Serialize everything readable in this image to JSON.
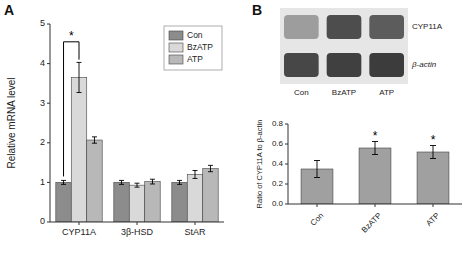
{
  "chart_data": [
    {
      "type": "bar",
      "title": "A",
      "categories": [
        "CYP11A",
        "3β-HSD",
        "StAR"
      ],
      "series": [
        {
          "name": "Con",
          "color": "#8c8c8c",
          "values": [
            1.0,
            1.0,
            1.0
          ],
          "errors": [
            0.05,
            0.05,
            0.05
          ]
        },
        {
          "name": "BzATP",
          "color": "#d9d9d9",
          "values": [
            3.65,
            0.93,
            1.2
          ],
          "errors": [
            0.38,
            0.05,
            0.1
          ]
        },
        {
          "name": "ATP",
          "color": "#b8b8b8",
          "values": [
            2.07,
            1.02,
            1.35
          ],
          "errors": [
            0.08,
            0.06,
            0.08
          ]
        }
      ],
      "ylabel": "Relative mRNA level",
      "ylim": [
        0,
        5
      ],
      "yticks": [
        0,
        1,
        2,
        3,
        4,
        5
      ],
      "grid": false,
      "legend": "upper right",
      "annotations": [
        {
          "text": "*",
          "category": "CYP11A",
          "series": [
            "Con",
            "BzATP"
          ],
          "y": 4.55,
          "y_start": 1.15,
          "y_end": 4.1
        }
      ]
    },
    {
      "type": "heatmap",
      "title": "B",
      "categories": [
        "Con",
        "BzATP",
        "ATP"
      ],
      "series": [
        {
          "name": "CYP11A",
          "values": [
            0.45,
            0.82,
            0.75
          ]
        },
        {
          "name": "β-actin",
          "values": [
            0.85,
            0.88,
            0.9
          ]
        }
      ]
    },
    {
      "type": "bar",
      "categories": [
        "Con",
        "BzATP",
        "ATP"
      ],
      "values": [
        0.35,
        0.56,
        0.52
      ],
      "errors": [
        0.085,
        0.065,
        0.065
      ],
      "color": "#a0a0a0",
      "ylabel": "Ratio of CYP11A to β-actin",
      "ylim": [
        0,
        0.8
      ],
      "yticks": [
        {
          "value": 0.0,
          "label": "0.0"
        },
        0.2,
        0.4,
        0.6,
        0.8
      ],
      "grid": false,
      "annotations": [
        {
          "text": "*",
          "category": "BzATP"
        },
        {
          "text": "*",
          "category": "ATP"
        }
      ]
    }
  ]
}
